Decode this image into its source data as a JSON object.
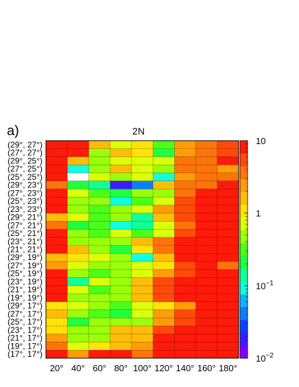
{
  "panel_label": "a)",
  "chart_data": {
    "type": "heatmap",
    "title": "2N",
    "xlabel": "",
    "ylabel": "",
    "x_categories": [
      "20°",
      "40°",
      "60°",
      "80°",
      "100°",
      "120°",
      "140°",
      "160°",
      "180°"
    ],
    "y_categories": [
      "(29°, 27°)",
      "(27°, 27°)",
      "(29°, 25°)",
      "(27°, 25°)",
      "(25°, 25°)",
      "(29°, 23°)",
      "(27°, 23°)",
      "(25°, 23°)",
      "(23°, 23°)",
      "(29°, 21°)",
      "(27°, 21°)",
      "(25°, 21°)",
      "(23°, 21°)",
      "(21°, 21°)",
      "(29°, 19°)",
      "(27°, 19°)",
      "(25°, 19°)",
      "(23°, 19°)",
      "(21°, 19°)",
      "(19°, 19°)",
      "(29°, 17°)",
      "(27°, 17°)",
      "(25°, 17°)",
      "(23°, 17°)",
      "(21°, 17°)",
      "(19°, 17°)",
      "(17°, 17°)"
    ],
    "values": [
      [
        10,
        10,
        1.5,
        0.6,
        1.2,
        0.3,
        2.5,
        4,
        5
      ],
      [
        10,
        10,
        0.5,
        1.5,
        1.2,
        0.2,
        2.5,
        4,
        5
      ],
      [
        10,
        1.5,
        0.5,
        0.6,
        0.8,
        0.6,
        3,
        4,
        9
      ],
      [
        10,
        0.1,
        0.4,
        1.5,
        0.6,
        0.4,
        3,
        4,
        2
      ],
      [
        9,
        null,
        0.6,
        0.4,
        0.6,
        0.08,
        2,
        3,
        4
      ],
      [
        3,
        0.25,
        0.15,
        0.02,
        0.05,
        1.5,
        3,
        4,
        9
      ],
      [
        9,
        0.6,
        0.3,
        0.2,
        0.5,
        0.5,
        4,
        8,
        10
      ],
      [
        9,
        0.5,
        0.4,
        0.1,
        0.3,
        0.8,
        6,
        9,
        10
      ],
      [
        9,
        0.4,
        0.3,
        0.4,
        0.8,
        2,
        6,
        10,
        10
      ],
      [
        1.5,
        0.6,
        0.3,
        0.4,
        0.15,
        1.5,
        5,
        9,
        10
      ],
      [
        3,
        0.2,
        0.3,
        0.08,
        0.15,
        0.6,
        4,
        7,
        10
      ],
      [
        10,
        0.4,
        0.3,
        0.6,
        0.3,
        0.8,
        5,
        10,
        10
      ],
      [
        10,
        0.4,
        0.4,
        0.5,
        1.5,
        3,
        7,
        10,
        10
      ],
      [
        10,
        1.5,
        0.4,
        0.2,
        1.2,
        3,
        8,
        10,
        10
      ],
      [
        1.5,
        1.2,
        0.6,
        0.4,
        0.1,
        1.5,
        8,
        9,
        10
      ],
      [
        2,
        0.8,
        0.5,
        0.4,
        0.8,
        1,
        6,
        9,
        4
      ],
      [
        9,
        0.5,
        0.3,
        0.4,
        0.6,
        2,
        6,
        10,
        10
      ],
      [
        10,
        0.15,
        0.6,
        0.5,
        1.5,
        5,
        7,
        10,
        10
      ],
      [
        10,
        0.6,
        0.3,
        0.4,
        1.5,
        5,
        8,
        10,
        10
      ],
      [
        10,
        0.5,
        0.5,
        0.4,
        1.5,
        5,
        7,
        10,
        10
      ],
      [
        1,
        0.8,
        0.4,
        0.3,
        0.6,
        1,
        2,
        8,
        9
      ],
      [
        1.5,
        0.5,
        0.3,
        0.2,
        0.6,
        2,
        6,
        10,
        10
      ],
      [
        1.2,
        0.2,
        0.5,
        0.4,
        0.5,
        2,
        6,
        9,
        10
      ],
      [
        1,
        0.4,
        0.5,
        1.5,
        1.5,
        5,
        8,
        9,
        10
      ],
      [
        2,
        0.5,
        0.5,
        1.5,
        1.5,
        9,
        10,
        10,
        10
      ],
      [
        4,
        0.8,
        1.2,
        1.5,
        2,
        9,
        10,
        10,
        10
      ],
      [
        10,
        2,
        10,
        10,
        3,
        10,
        10,
        10,
        10
      ]
    ],
    "colorbar": {
      "scale": "log",
      "range": [
        0.01,
        10
      ],
      "tick_labels": [
        "10",
        "1",
        "10^-1",
        "10^-2"
      ],
      "tick_values": [
        10,
        1,
        0.1,
        0.01
      ]
    },
    "grid": true
  }
}
